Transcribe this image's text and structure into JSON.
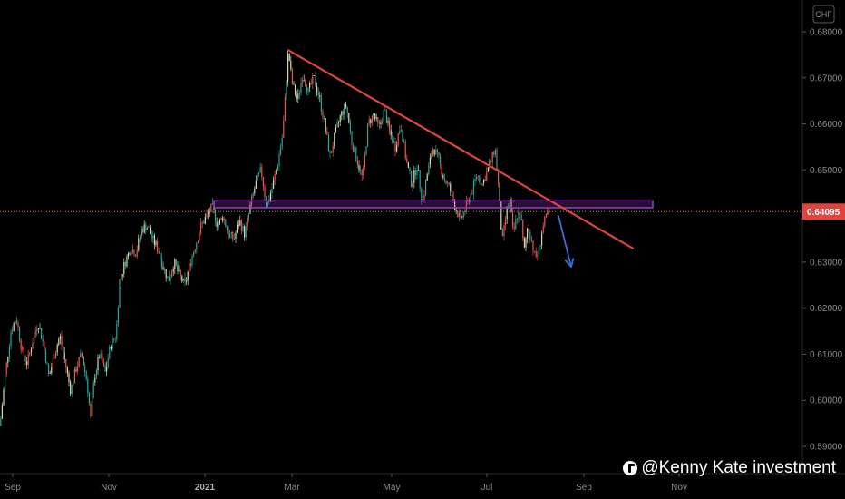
{
  "chart_data": {
    "type": "candlestick",
    "currency": "CHF",
    "current_price": "0.64095",
    "y_ticks": [
      "0.68000",
      "0.67000",
      "0.66000",
      "0.65000",
      "0.64000",
      "0.63000",
      "0.62000",
      "0.61000",
      "0.60000",
      "0.59000"
    ],
    "y_tick_values": [
      0.68,
      0.67,
      0.66,
      0.65,
      0.64,
      0.63,
      0.62,
      0.61,
      0.6,
      0.59
    ],
    "ylim": [
      0.5875,
      0.6835
    ],
    "x_ticks": [
      "Sep",
      "Nov",
      "2021",
      "Mar",
      "May",
      "Jul",
      "Sep",
      "Nov"
    ],
    "bold_x_tick": "2021",
    "price_path": [
      [
        0,
        0.5945
      ],
      [
        6,
        0.606
      ],
      [
        12,
        0.615
      ],
      [
        18,
        0.618
      ],
      [
        24,
        0.611
      ],
      [
        30,
        0.608
      ],
      [
        36,
        0.613
      ],
      [
        42,
        0.617
      ],
      [
        48,
        0.612
      ],
      [
        54,
        0.605
      ],
      [
        60,
        0.61
      ],
      [
        66,
        0.614
      ],
      [
        72,
        0.608
      ],
      [
        78,
        0.602
      ],
      [
        84,
        0.607
      ],
      [
        90,
        0.61
      ],
      [
        96,
        0.604
      ],
      [
        100,
        0.596
      ],
      [
        104,
        0.605
      ],
      [
        110,
        0.61
      ],
      [
        116,
        0.606
      ],
      [
        122,
        0.612
      ],
      [
        128,
        0.614
      ],
      [
        132,
        0.626
      ],
      [
        138,
        0.63
      ],
      [
        144,
        0.633
      ],
      [
        150,
        0.632
      ],
      [
        156,
        0.637
      ],
      [
        162,
        0.638
      ],
      [
        168,
        0.635
      ],
      [
        174,
        0.633
      ],
      [
        180,
        0.629
      ],
      [
        186,
        0.626
      ],
      [
        192,
        0.63
      ],
      [
        198,
        0.627
      ],
      [
        204,
        0.625
      ],
      [
        210,
        0.63
      ],
      [
        216,
        0.634
      ],
      [
        222,
        0.638
      ],
      [
        228,
        0.64
      ],
      [
        234,
        0.642
      ],
      [
        240,
        0.638
      ],
      [
        246,
        0.64
      ],
      [
        252,
        0.636
      ],
      [
        258,
        0.635
      ],
      [
        264,
        0.639
      ],
      [
        270,
        0.636
      ],
      [
        276,
        0.642
      ],
      [
        282,
        0.647
      ],
      [
        288,
        0.65
      ],
      [
        294,
        0.642
      ],
      [
        300,
        0.646
      ],
      [
        306,
        0.651
      ],
      [
        312,
        0.658
      ],
      [
        316,
        0.67
      ],
      [
        318,
        0.676
      ],
      [
        322,
        0.669
      ],
      [
        328,
        0.665
      ],
      [
        334,
        0.671
      ],
      [
        340,
        0.667
      ],
      [
        346,
        0.67
      ],
      [
        352,
        0.666
      ],
      [
        358,
        0.66
      ],
      [
        364,
        0.653
      ],
      [
        370,
        0.658
      ],
      [
        376,
        0.662
      ],
      [
        382,
        0.664
      ],
      [
        388,
        0.656
      ],
      [
        394,
        0.652
      ],
      [
        400,
        0.648
      ],
      [
        406,
        0.66
      ],
      [
        412,
        0.662
      ],
      [
        418,
        0.659
      ],
      [
        424,
        0.663
      ],
      [
        430,
        0.658
      ],
      [
        436,
        0.655
      ],
      [
        442,
        0.66
      ],
      [
        448,
        0.652
      ],
      [
        454,
        0.647
      ],
      [
        460,
        0.651
      ],
      [
        466,
        0.643
      ],
      [
        472,
        0.65
      ],
      [
        478,
        0.655
      ],
      [
        484,
        0.652
      ],
      [
        490,
        0.648
      ],
      [
        496,
        0.646
      ],
      [
        502,
        0.642
      ],
      [
        508,
        0.639
      ],
      [
        514,
        0.642
      ],
      [
        520,
        0.645
      ],
      [
        526,
        0.649
      ],
      [
        532,
        0.647
      ],
      [
        538,
        0.65
      ],
      [
        542,
        0.652
      ],
      [
        546,
        0.655
      ],
      [
        550,
        0.646
      ],
      [
        554,
        0.634
      ],
      [
        558,
        0.64
      ],
      [
        562,
        0.644
      ],
      [
        566,
        0.636
      ],
      [
        570,
        0.64
      ],
      [
        574,
        0.641
      ],
      [
        578,
        0.632
      ],
      [
        582,
        0.638
      ],
      [
        586,
        0.635
      ],
      [
        590,
        0.631
      ],
      [
        594,
        0.632
      ],
      [
        598,
        0.637
      ],
      [
        602,
        0.6395
      ],
      [
        606,
        0.641
      ]
    ],
    "trendline": {
      "from": {
        "x": 318,
        "y": 0.676
      },
      "to": {
        "x": 698,
        "y": 0.633
      },
      "color": "#e0443e"
    },
    "resistance_zone": {
      "x_from": 236,
      "x_to": 720,
      "y_low": 0.6418,
      "y_high": 0.6433,
      "color": "#9c3ec8"
    },
    "current_price_line_value": 0.64095,
    "forecast_arrow": {
      "from": {
        "x": 616,
        "y": 0.64
      },
      "to": {
        "x": 630,
        "y": 0.629
      },
      "color": "#3a6fd8"
    },
    "colors": {
      "up": "#26a69a",
      "down": "#ef5350",
      "neutral": "#d9d9b0",
      "current_price_bg": "#e0443e"
    }
  },
  "watermark": {
    "text": "@Kenny Kate investment"
  }
}
